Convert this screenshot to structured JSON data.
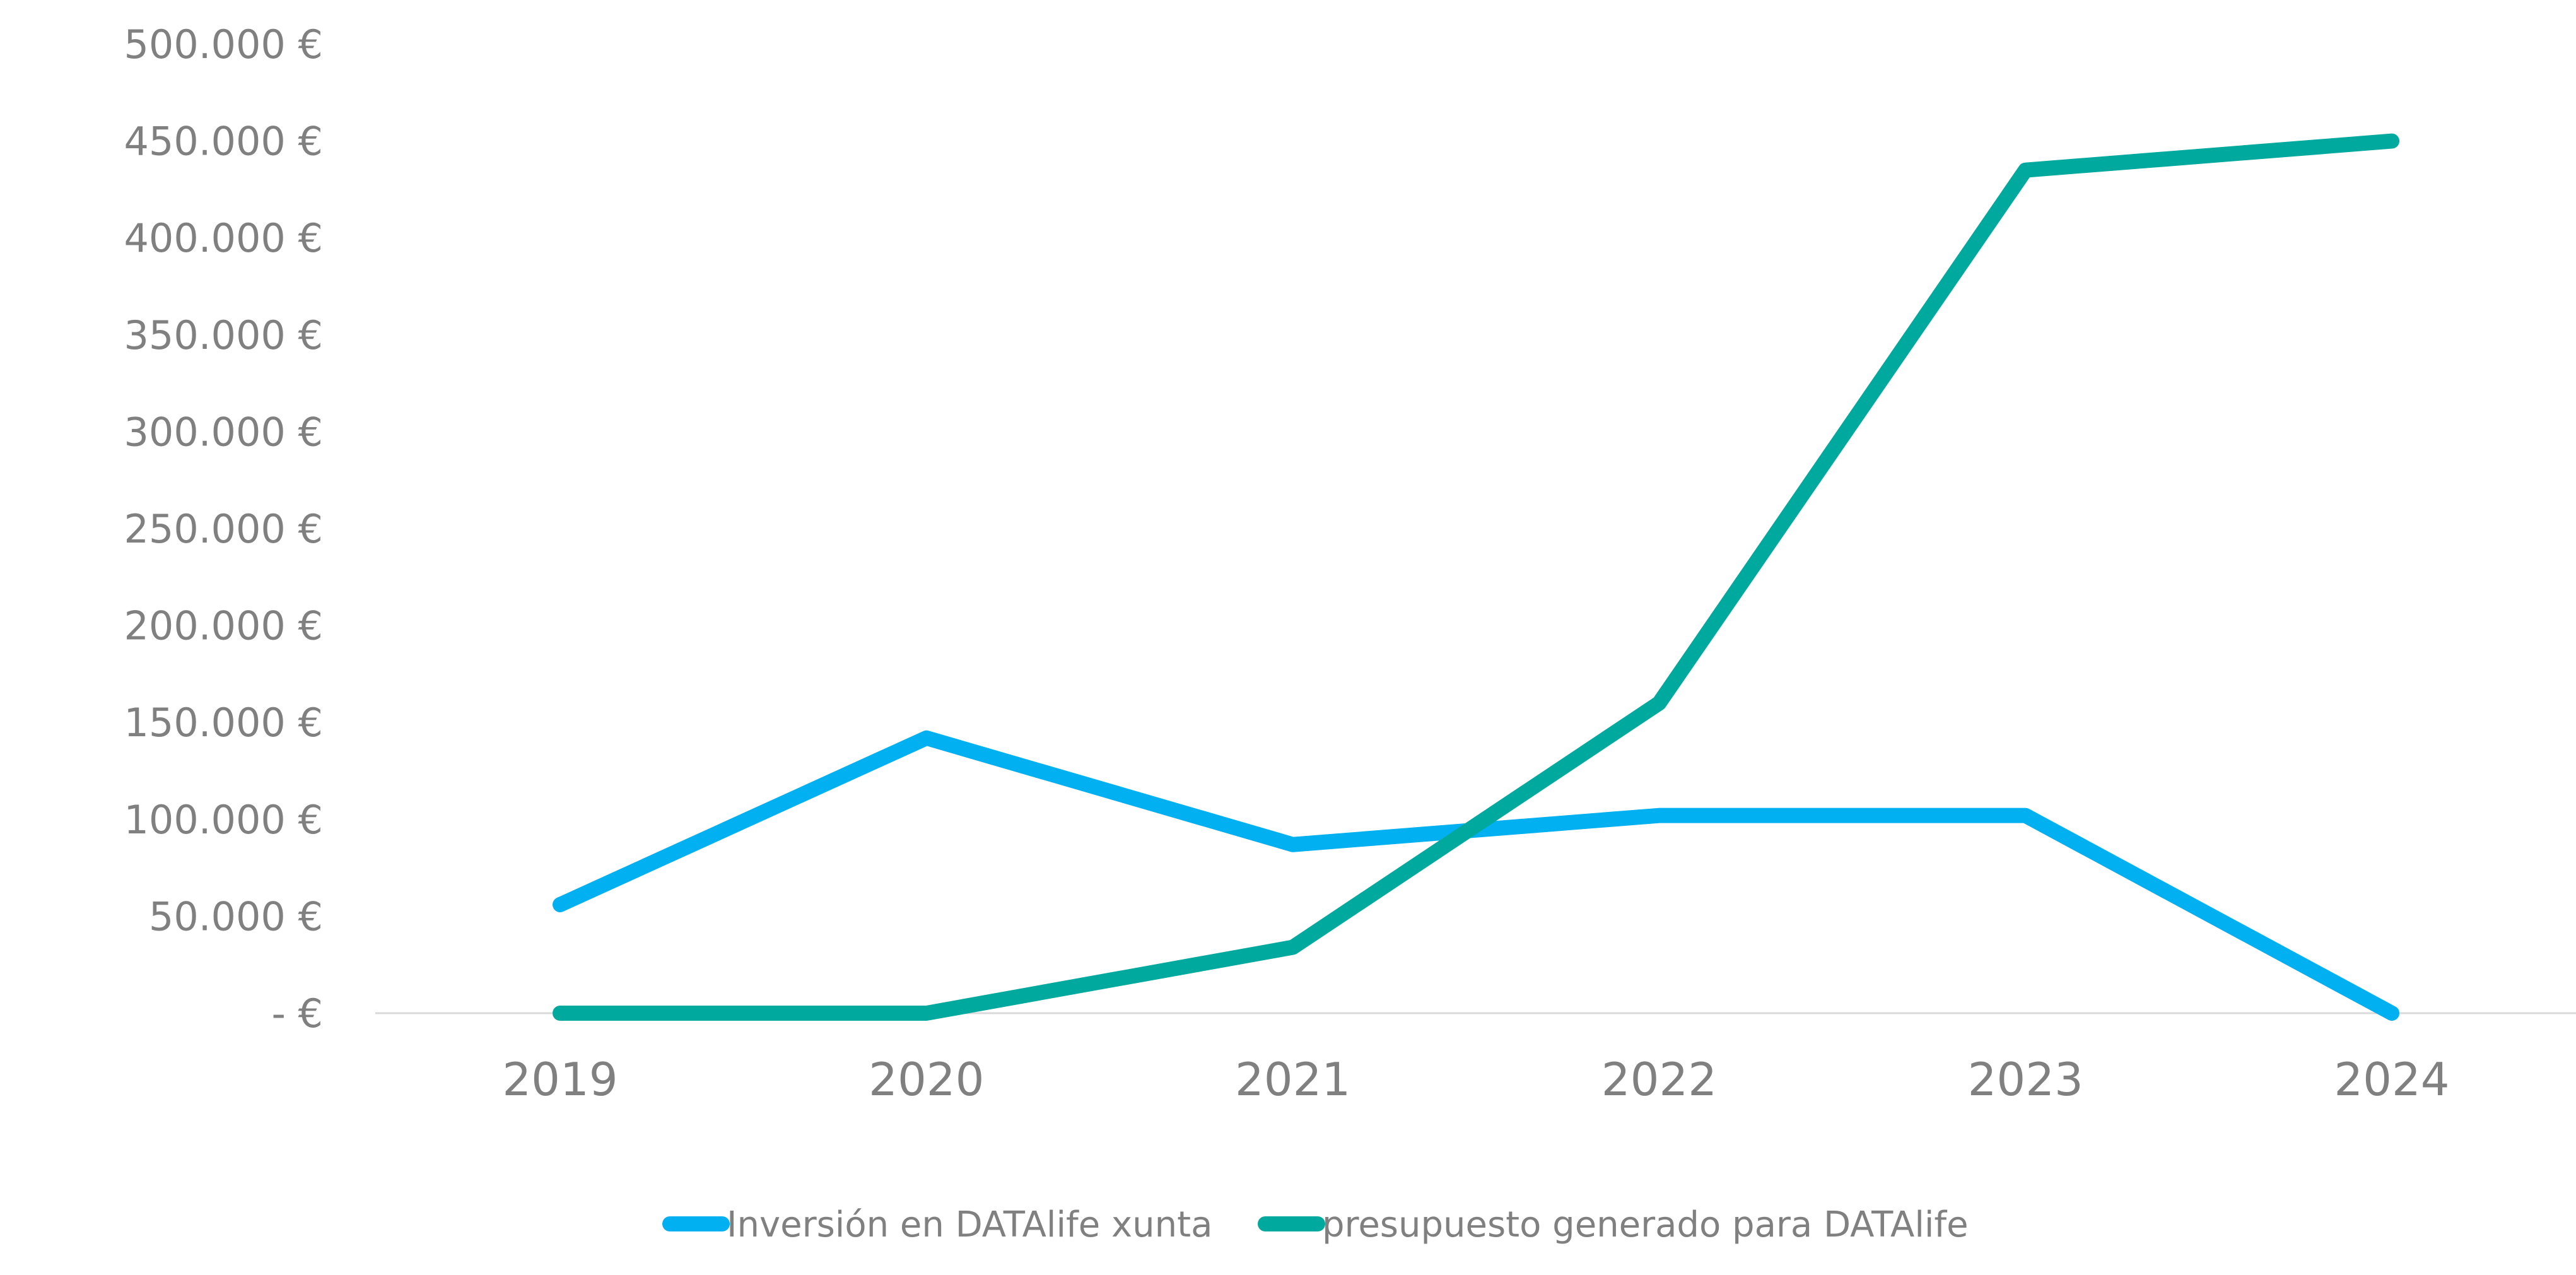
{
  "chart_data": {
    "type": "line",
    "title": "",
    "xlabel": "",
    "ylabel": "",
    "categories": [
      "2019",
      "2020",
      "2021",
      "2022",
      "2023",
      "2024"
    ],
    "ylim": [
      0,
      500000
    ],
    "yticks": [
      0,
      50000,
      100000,
      150000,
      200000,
      250000,
      300000,
      350000,
      400000,
      450000,
      500000
    ],
    "ytick_labels": [
      "-  €",
      "50.000 €",
      "100.000 €",
      "150.000 €",
      "200.000 €",
      "250.000 €",
      "300.000 €",
      "350.000 €",
      "400.000 €",
      "450.000 €",
      "500.000 €"
    ],
    "grid": false,
    "legend_position": "bottom",
    "series": [
      {
        "name": "Inversión en DATAlife xunta",
        "color": "#00B0F0",
        "values": [
          56000,
          142000,
          87000,
          102000,
          102000,
          0
        ]
      },
      {
        "name": "presupuesto generado para DATAlife",
        "color": "#00A99D",
        "values": [
          0,
          0,
          34000,
          160000,
          435000,
          450000
        ]
      }
    ]
  }
}
